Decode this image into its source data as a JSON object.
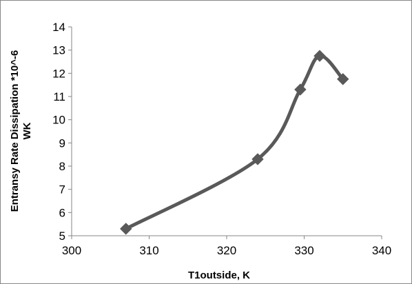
{
  "chart_data": {
    "type": "line",
    "smooth": true,
    "title": "",
    "xlabel": "T1outside, K",
    "ylabel_line1": "Entransy Rate Dissipation *10^-6",
    "ylabel_line2": "WK",
    "xlim": [
      300,
      340
    ],
    "ylim": [
      5,
      14
    ],
    "xticks": [
      300,
      310,
      320,
      330,
      340
    ],
    "yticks": [
      5,
      6,
      7,
      8,
      9,
      10,
      11,
      12,
      13,
      14
    ],
    "grid": false,
    "legend": "none",
    "marker": "diamond",
    "series": [
      {
        "color": "#595959",
        "x": [
          307,
          324,
          329.5,
          332,
          335
        ],
        "y": [
          5.3,
          8.3,
          11.3,
          12.75,
          11.75
        ]
      }
    ]
  }
}
